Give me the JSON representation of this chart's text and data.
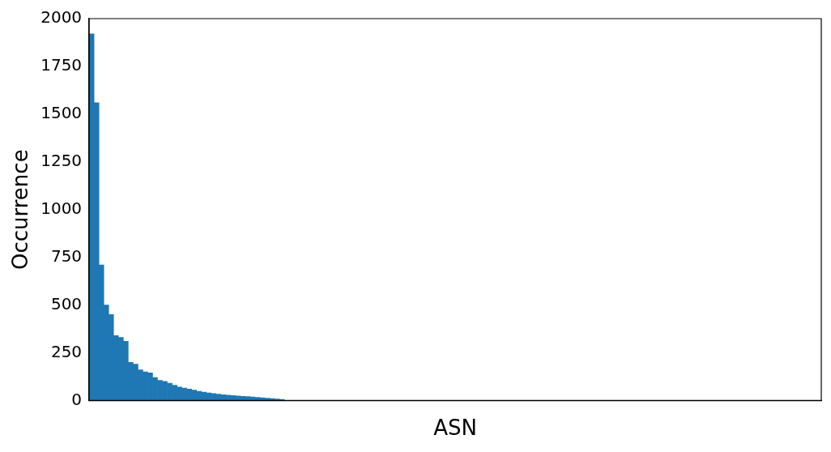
{
  "chart_data": {
    "type": "bar",
    "xlabel": "ASN",
    "ylabel": "Occurrence",
    "color": "#1f77b4",
    "categories": [
      null,
      null,
      null,
      null,
      null,
      null,
      null,
      null,
      null,
      null,
      null,
      null,
      null,
      null,
      null,
      null,
      null,
      null,
      null,
      null,
      null,
      null,
      null,
      null,
      null,
      null,
      null,
      null,
      null,
      null,
      null,
      null,
      null,
      null,
      null,
      null,
      null,
      null,
      null,
      null,
      null,
      null,
      null,
      null,
      null,
      null,
      null,
      null,
      null,
      null,
      null,
      null,
      null,
      null,
      null,
      null,
      null,
      null,
      null,
      null,
      null,
      null,
      null,
      null,
      null,
      null,
      null,
      null,
      null,
      null,
      null,
      null,
      null,
      null,
      null,
      null,
      null,
      null,
      null,
      null,
      null,
      null,
      null,
      null,
      null,
      null,
      null,
      null,
      null,
      null,
      null,
      null,
      null,
      null,
      null,
      null,
      null,
      null,
      null,
      null,
      null,
      null,
      null,
      null,
      null,
      null,
      null,
      null,
      null,
      null,
      null,
      null,
      null,
      null,
      null,
      null,
      null,
      null,
      null,
      null,
      null,
      null,
      null,
      null,
      null,
      null,
      null,
      null,
      null,
      null,
      null,
      null,
      null,
      null,
      null,
      null,
      null,
      null,
      null,
      null,
      null,
      null,
      null,
      null,
      null,
      null,
      null,
      null,
      null,
      null
    ],
    "values": [
      1920,
      1560,
      710,
      500,
      450,
      340,
      330,
      310,
      200,
      190,
      160,
      150,
      145,
      120,
      105,
      100,
      90,
      80,
      70,
      65,
      60,
      54,
      48,
      44,
      40,
      36,
      33,
      30,
      28,
      26,
      24,
      22,
      20,
      18,
      16,
      14,
      12,
      10,
      8,
      6,
      0,
      0,
      0,
      0,
      0,
      0,
      0,
      0,
      0,
      0,
      0,
      0,
      0,
      0,
      0,
      0,
      0,
      0,
      0,
      0,
      0,
      0,
      0,
      0,
      0,
      0,
      0,
      0,
      0,
      0,
      0,
      0,
      0,
      0,
      0,
      0,
      0,
      0,
      0,
      0,
      0,
      0,
      0,
      0,
      0,
      0,
      0,
      0,
      0,
      0,
      0,
      0,
      0,
      0,
      0,
      0,
      0,
      0,
      0,
      0,
      0,
      0,
      0,
      0,
      0,
      0,
      0,
      0,
      0,
      0,
      0,
      0,
      0,
      0,
      0,
      0,
      0,
      0,
      0,
      0,
      0,
      0,
      0,
      0,
      0,
      0,
      0,
      0,
      0,
      0,
      0,
      0,
      0,
      0,
      0,
      0,
      0,
      0,
      0,
      0,
      0,
      0,
      0,
      0,
      0,
      0,
      0,
      0,
      0,
      0
    ],
    "ylim": [
      0,
      2000
    ],
    "yticks": [
      0,
      250,
      500,
      750,
      1000,
      1250,
      1500,
      1750,
      2000
    ],
    "grid": false,
    "legend": false
  }
}
